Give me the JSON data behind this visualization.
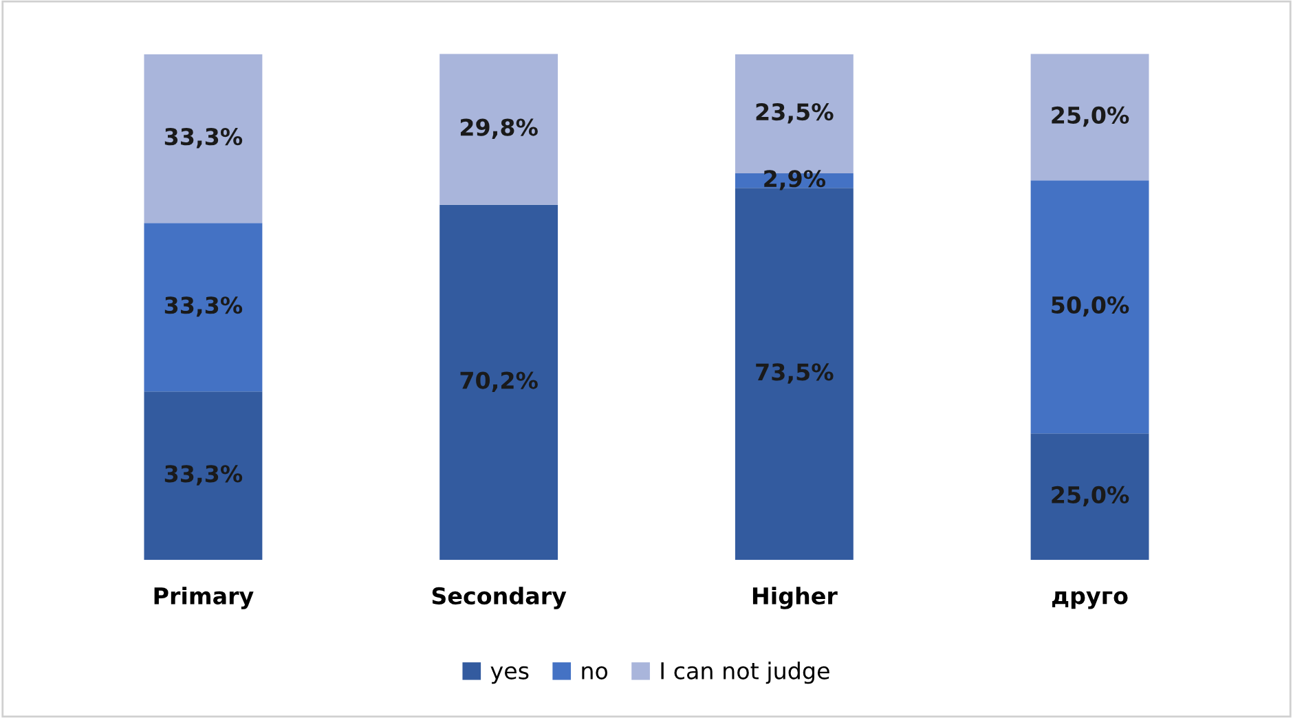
{
  "chart_data": {
    "type": "bar",
    "stacked": true,
    "categories": [
      "Primary",
      "Secondary",
      "Higher",
      "друго"
    ],
    "series": [
      {
        "name": "yes",
        "color": "#335b9f",
        "values": [
          33.3,
          70.2,
          73.5,
          25.0
        ],
        "value_labels": [
          "33,3%",
          "70,2%",
          "73,5%",
          "25,0%"
        ]
      },
      {
        "name": "no",
        "color": "#4472c4",
        "values": [
          33.3,
          0,
          2.9,
          50.0
        ],
        "value_labels": [
          "33,3%",
          null,
          "2,9%",
          "50,0%"
        ]
      },
      {
        "name": "I can not judge",
        "color": "#a9b5db",
        "values": [
          33.3,
          29.8,
          23.5,
          25.0
        ],
        "value_labels": [
          "33,3%",
          "29,8%",
          "23,5%",
          "25,0%"
        ]
      }
    ],
    "legend": "bottom",
    "grid": false
  }
}
